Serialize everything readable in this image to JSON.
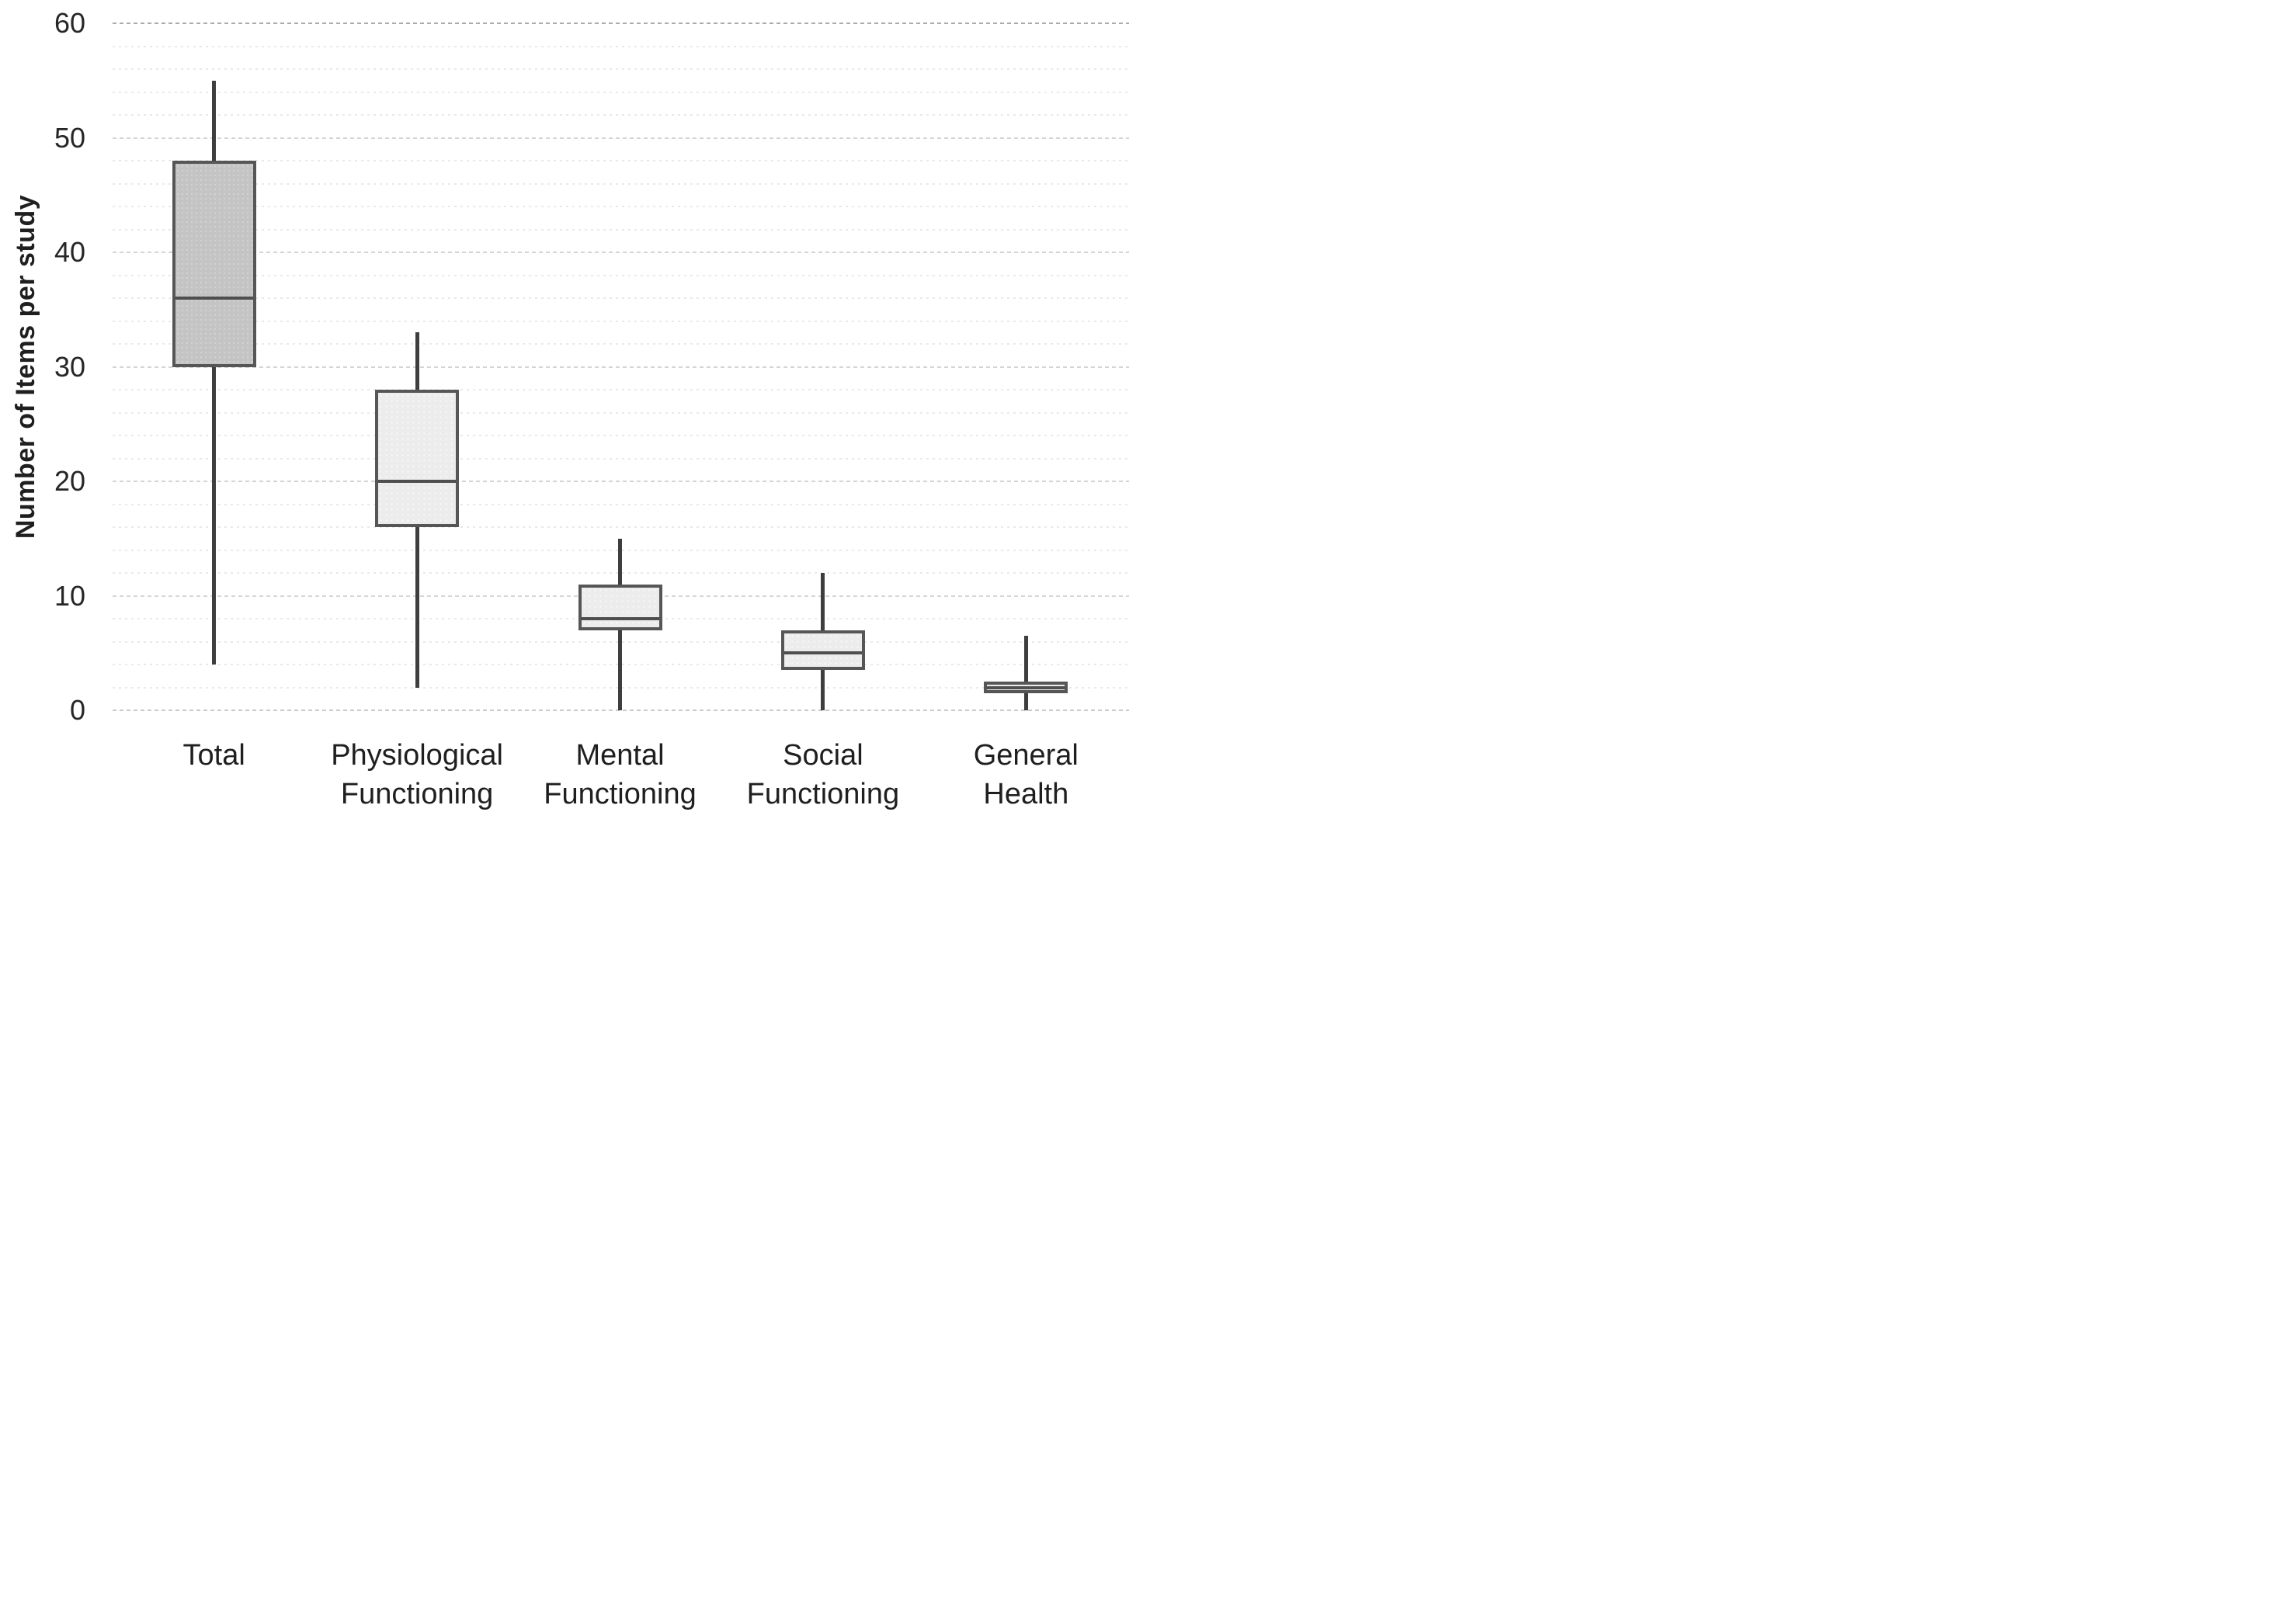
{
  "chart_data": {
    "type": "box",
    "title": "",
    "ylabel": "Number of Items per study",
    "xlabel": "",
    "ylim": [
      0,
      60
    ],
    "y_major_step": 10,
    "y_minor_step": 2,
    "y_tick_labels": [
      "0",
      "10",
      "20",
      "30",
      "40",
      "50",
      "60"
    ],
    "grid": "horizontal major and minor dashed gridlines, light gray",
    "legend": "none",
    "categories": [
      "Total",
      "Physiological Functioning",
      "Mental Functioning",
      "Social Functioning",
      "General Health"
    ],
    "category_label_lines": [
      [
        "Total"
      ],
      [
        "Physiological",
        "Functioning"
      ],
      [
        "Mental",
        "Functioning"
      ],
      [
        "Social",
        "Functioning"
      ],
      [
        "General",
        "Health"
      ]
    ],
    "series": [
      {
        "name": "Total",
        "whisker_low": 4,
        "q1": 30,
        "median": 36,
        "q3": 48,
        "whisker_high": 55,
        "fill": "dark"
      },
      {
        "name": "Physiological Functioning",
        "whisker_low": 2,
        "q1": 16,
        "median": 20,
        "q3": 28,
        "whisker_high": 33,
        "fill": "light"
      },
      {
        "name": "Mental Functioning",
        "whisker_low": 0,
        "q1": 7,
        "median": 8,
        "q3": 11,
        "whisker_high": 15,
        "fill": "light"
      },
      {
        "name": "Social Functioning",
        "whisker_low": 0,
        "q1": 3.5,
        "median": 5,
        "q3": 7,
        "whisker_high": 12,
        "fill": "light"
      },
      {
        "name": "General Health",
        "whisker_low": 0,
        "q1": 1.5,
        "median": 2,
        "q3": 2.5,
        "whisker_high": 6.5,
        "fill": "light"
      }
    ],
    "colors": {
      "total_box_fill": "#c4c4c4",
      "other_box_fill": "#ececec",
      "box_border": "#565656",
      "whisker": "#3e3e3e",
      "median_line": "#4f4f4f",
      "gridline_minor": "#e9e9e9",
      "gridline_major": "#d4d4d4",
      "gridline_top": "#ababab",
      "gridline_zero": "#c9c9c9",
      "text": "#262626",
      "background": "#ffffff"
    }
  }
}
